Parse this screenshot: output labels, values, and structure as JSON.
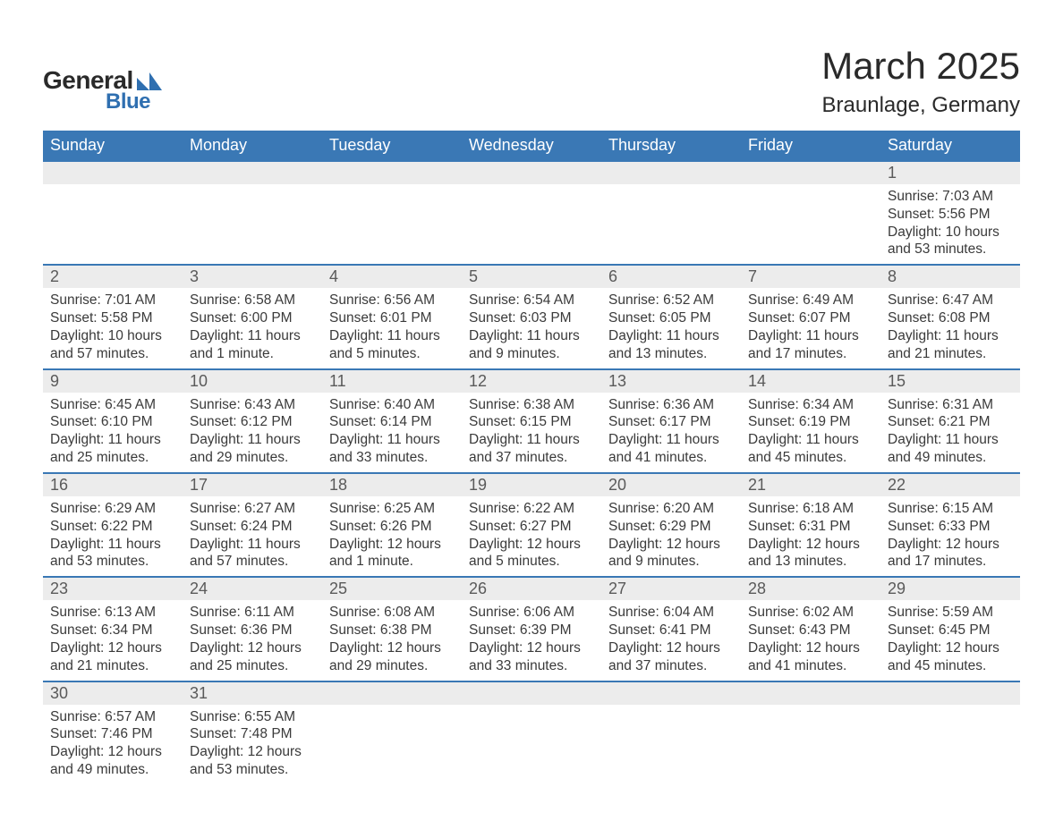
{
  "logo": {
    "text1": "General",
    "text2": "Blue",
    "shape_color": "#2f6fb0"
  },
  "title": "March 2025",
  "location": "Braunlage, Germany",
  "colors": {
    "header_bg": "#3a78b5",
    "header_text": "#ffffff",
    "daynum_bg": "#ececec",
    "row_border": "#3a78b5",
    "body_text": "#3a3a3a"
  },
  "weekdays": [
    "Sunday",
    "Monday",
    "Tuesday",
    "Wednesday",
    "Thursday",
    "Friday",
    "Saturday"
  ],
  "weeks": [
    [
      null,
      null,
      null,
      null,
      null,
      null,
      {
        "d": "1",
        "sr": "7:03 AM",
        "ss": "5:56 PM",
        "dl": "10 hours and 53 minutes."
      }
    ],
    [
      {
        "d": "2",
        "sr": "7:01 AM",
        "ss": "5:58 PM",
        "dl": "10 hours and 57 minutes."
      },
      {
        "d": "3",
        "sr": "6:58 AM",
        "ss": "6:00 PM",
        "dl": "11 hours and 1 minute."
      },
      {
        "d": "4",
        "sr": "6:56 AM",
        "ss": "6:01 PM",
        "dl": "11 hours and 5 minutes."
      },
      {
        "d": "5",
        "sr": "6:54 AM",
        "ss": "6:03 PM",
        "dl": "11 hours and 9 minutes."
      },
      {
        "d": "6",
        "sr": "6:52 AM",
        "ss": "6:05 PM",
        "dl": "11 hours and 13 minutes."
      },
      {
        "d": "7",
        "sr": "6:49 AM",
        "ss": "6:07 PM",
        "dl": "11 hours and 17 minutes."
      },
      {
        "d": "8",
        "sr": "6:47 AM",
        "ss": "6:08 PM",
        "dl": "11 hours and 21 minutes."
      }
    ],
    [
      {
        "d": "9",
        "sr": "6:45 AM",
        "ss": "6:10 PM",
        "dl": "11 hours and 25 minutes."
      },
      {
        "d": "10",
        "sr": "6:43 AM",
        "ss": "6:12 PM",
        "dl": "11 hours and 29 minutes."
      },
      {
        "d": "11",
        "sr": "6:40 AM",
        "ss": "6:14 PM",
        "dl": "11 hours and 33 minutes."
      },
      {
        "d": "12",
        "sr": "6:38 AM",
        "ss": "6:15 PM",
        "dl": "11 hours and 37 minutes."
      },
      {
        "d": "13",
        "sr": "6:36 AM",
        "ss": "6:17 PM",
        "dl": "11 hours and 41 minutes."
      },
      {
        "d": "14",
        "sr": "6:34 AM",
        "ss": "6:19 PM",
        "dl": "11 hours and 45 minutes."
      },
      {
        "d": "15",
        "sr": "6:31 AM",
        "ss": "6:21 PM",
        "dl": "11 hours and 49 minutes."
      }
    ],
    [
      {
        "d": "16",
        "sr": "6:29 AM",
        "ss": "6:22 PM",
        "dl": "11 hours and 53 minutes."
      },
      {
        "d": "17",
        "sr": "6:27 AM",
        "ss": "6:24 PM",
        "dl": "11 hours and 57 minutes."
      },
      {
        "d": "18",
        "sr": "6:25 AM",
        "ss": "6:26 PM",
        "dl": "12 hours and 1 minute."
      },
      {
        "d": "19",
        "sr": "6:22 AM",
        "ss": "6:27 PM",
        "dl": "12 hours and 5 minutes."
      },
      {
        "d": "20",
        "sr": "6:20 AM",
        "ss": "6:29 PM",
        "dl": "12 hours and 9 minutes."
      },
      {
        "d": "21",
        "sr": "6:18 AM",
        "ss": "6:31 PM",
        "dl": "12 hours and 13 minutes."
      },
      {
        "d": "22",
        "sr": "6:15 AM",
        "ss": "6:33 PM",
        "dl": "12 hours and 17 minutes."
      }
    ],
    [
      {
        "d": "23",
        "sr": "6:13 AM",
        "ss": "6:34 PM",
        "dl": "12 hours and 21 minutes."
      },
      {
        "d": "24",
        "sr": "6:11 AM",
        "ss": "6:36 PM",
        "dl": "12 hours and 25 minutes."
      },
      {
        "d": "25",
        "sr": "6:08 AM",
        "ss": "6:38 PM",
        "dl": "12 hours and 29 minutes."
      },
      {
        "d": "26",
        "sr": "6:06 AM",
        "ss": "6:39 PM",
        "dl": "12 hours and 33 minutes."
      },
      {
        "d": "27",
        "sr": "6:04 AM",
        "ss": "6:41 PM",
        "dl": "12 hours and 37 minutes."
      },
      {
        "d": "28",
        "sr": "6:02 AM",
        "ss": "6:43 PM",
        "dl": "12 hours and 41 minutes."
      },
      {
        "d": "29",
        "sr": "5:59 AM",
        "ss": "6:45 PM",
        "dl": "12 hours and 45 minutes."
      }
    ],
    [
      {
        "d": "30",
        "sr": "6:57 AM",
        "ss": "7:46 PM",
        "dl": "12 hours and 49 minutes."
      },
      {
        "d": "31",
        "sr": "6:55 AM",
        "ss": "7:48 PM",
        "dl": "12 hours and 53 minutes."
      },
      null,
      null,
      null,
      null,
      null
    ]
  ],
  "labels": {
    "sunrise": "Sunrise: ",
    "sunset": "Sunset: ",
    "daylight": "Daylight: "
  }
}
